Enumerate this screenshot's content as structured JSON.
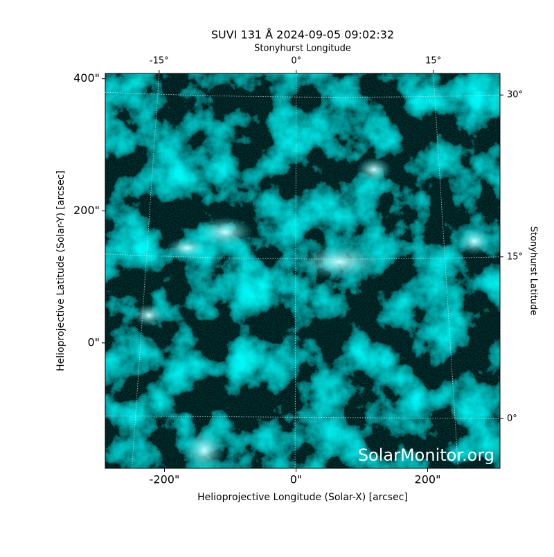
{
  "chart_data": {
    "type": "image",
    "title": "SUVI 131 Å 2024-09-05 09:02:32",
    "xlabel": "Helioprojective Longitude (Solar-X) [arcsec]",
    "ylabel": "Helioprojective Latitude (Solar-Y) [arcsec]",
    "x2label": "Stonyhurst Longitude",
    "y2label": "Stonyhurst Latitude",
    "watermark": "SolarMonitor.org",
    "xlim": [
      -290,
      310
    ],
    "ylim": [
      -190,
      408
    ],
    "xticks": [
      {
        "value": -200,
        "label": "-200\""
      },
      {
        "value": 0,
        "label": "0\""
      },
      {
        "value": 200,
        "label": "200\""
      }
    ],
    "yticks": [
      {
        "value": 0,
        "label": "0\""
      },
      {
        "value": 200,
        "label": "200\""
      },
      {
        "value": 400,
        "label": "400\""
      }
    ],
    "x2lim": [
      -20.9,
      22.3
    ],
    "x2ticks": [
      {
        "value": -15,
        "label": "-15°"
      },
      {
        "value": 0,
        "label": "0°"
      },
      {
        "value": 15,
        "label": "15°"
      }
    ],
    "y2lim": [
      -4.6,
      32.0
    ],
    "y2ticks": [
      {
        "value": 0,
        "label": "0°"
      },
      {
        "value": 15,
        "label": "15°"
      },
      {
        "value": 30,
        "label": "30°"
      }
    ],
    "grid": true
  }
}
